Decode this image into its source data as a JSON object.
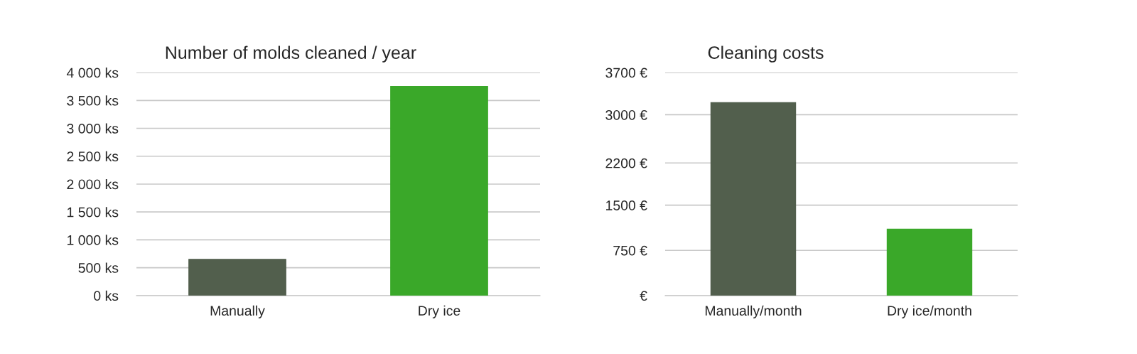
{
  "chart_data": [
    {
      "type": "bar",
      "title": "Number of molds cleaned / year",
      "categories": [
        "Manually",
        "Dry ice"
      ],
      "values": [
        650,
        3750
      ],
      "colors": [
        "#525f4d",
        "#3aa829"
      ],
      "ylim": [
        0,
        4000
      ],
      "yticks": [
        {
          "value": 0,
          "label": "0 ks"
        },
        {
          "value": 500,
          "label": "500 ks"
        },
        {
          "value": 1000,
          "label": "1 000 ks"
        },
        {
          "value": 1500,
          "label": "1 500 ks"
        },
        {
          "value": 2000,
          "label": "2 000 ks"
        },
        {
          "value": 2500,
          "label": "2 500 ks"
        },
        {
          "value": 3000,
          "label": "3 000 ks"
        },
        {
          "value": 3500,
          "label": "3 500 ks"
        },
        {
          "value": 4000,
          "label": "4 000 ks"
        }
      ],
      "grid": "y"
    },
    {
      "type": "bar",
      "title": "Cleaning costs",
      "categories": [
        "Manually/month",
        "Dry ice/month"
      ],
      "values": [
        3200,
        1100
      ],
      "colors": [
        "#525f4d",
        "#3aa829"
      ],
      "ylim": [
        0,
        3700
      ],
      "yticks": [
        {
          "value": 0,
          "label": "€"
        },
        {
          "value": 750,
          "label": "750 €"
        },
        {
          "value": 1500,
          "label": "1500 €"
        },
        {
          "value": 2200,
          "label": "2200 €"
        },
        {
          "value": 3000,
          "label": "3000 €"
        },
        {
          "value": 3700,
          "label": "3700 €"
        }
      ],
      "grid": "y"
    }
  ]
}
